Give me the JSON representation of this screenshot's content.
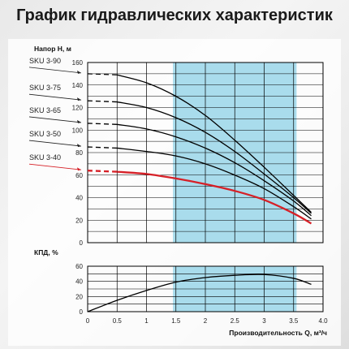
{
  "title": "График гидравлических характеристик",
  "chart_data": [
    {
      "type": "line",
      "id": "head",
      "ylabel": "Напор H, м",
      "xlim": [
        0,
        4.0
      ],
      "ylim": [
        0,
        160
      ],
      "yticks": [
        0,
        20,
        40,
        60,
        80,
        100,
        120,
        140,
        160
      ],
      "highlight_band": [
        1.45,
        3.55
      ],
      "grid": true,
      "series": [
        {
          "name": "SKU 3-90",
          "color": "#000000",
          "dash_until": 0.5,
          "x": [
            0,
            0.5,
            1,
            1.5,
            2,
            2.5,
            3,
            3.5,
            3.8
          ],
          "values": [
            150,
            149,
            142,
            130,
            113,
            91,
            67,
            42,
            27
          ]
        },
        {
          "name": "SKU 3-75",
          "color": "#000000",
          "dash_until": 0.5,
          "x": [
            0,
            0.5,
            1,
            1.5,
            2,
            2.5,
            3,
            3.5,
            3.8
          ],
          "values": [
            126,
            125,
            120,
            111,
            98,
            81,
            61,
            40,
            26
          ]
        },
        {
          "name": "SKU 3-65",
          "color": "#000000",
          "dash_until": 0.5,
          "x": [
            0,
            0.5,
            1,
            1.5,
            2,
            2.5,
            3,
            3.5,
            3.8
          ],
          "values": [
            106,
            105,
            101,
            94,
            84,
            71,
            55,
            37,
            24
          ]
        },
        {
          "name": "SKU 3-50",
          "color": "#000000",
          "dash_until": 0.5,
          "x": [
            0,
            0.5,
            1,
            1.5,
            2,
            2.5,
            3,
            3.5,
            3.8
          ],
          "values": [
            85,
            84,
            81,
            77,
            70,
            60,
            48,
            32,
            21
          ]
        },
        {
          "name": "SKU 3-40",
          "color": "#d62027",
          "dash_until": 0.5,
          "x": [
            0,
            0.5,
            1,
            1.5,
            2,
            2.5,
            3,
            3.5,
            3.8
          ],
          "values": [
            64,
            63,
            61,
            57,
            52,
            46,
            38,
            26,
            17
          ]
        }
      ]
    },
    {
      "type": "line",
      "id": "efficiency",
      "ylabel": "КПД, %",
      "xlabel": "Производительность Q, м³/ч",
      "xlim": [
        0,
        4.0
      ],
      "xticks": [
        0,
        0.5,
        1,
        1.5,
        2,
        2.5,
        3,
        3.5,
        4.0
      ],
      "ylim": [
        0,
        60
      ],
      "yticks": [
        0,
        20,
        40,
        60
      ],
      "highlight_band": [
        1.45,
        3.55
      ],
      "grid": true,
      "series": [
        {
          "color": "#000000",
          "x": [
            0,
            0.5,
            1,
            1.5,
            2,
            2.5,
            3,
            3.5,
            3.8
          ],
          "values": [
            0,
            15,
            28,
            39,
            45,
            48,
            49,
            44,
            36
          ]
        }
      ]
    }
  ],
  "colors": {
    "band": "#a9dcec",
    "grid": "#000000",
    "accent": "#d62027"
  }
}
